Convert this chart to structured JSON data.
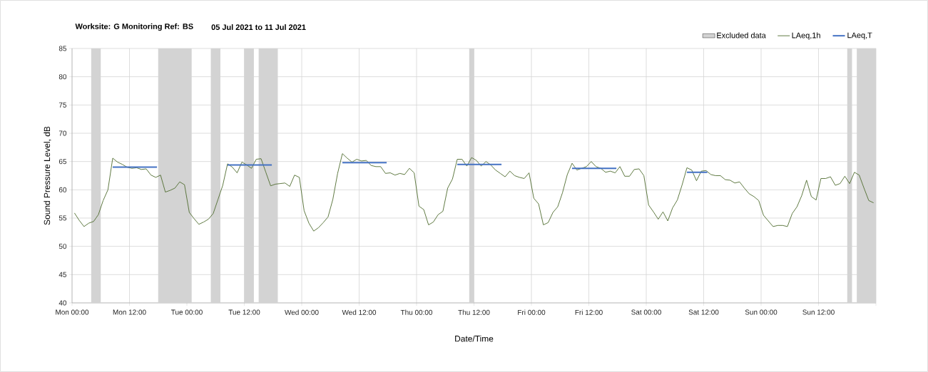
{
  "chart_data": {
    "type": "line",
    "title": "Worksite: G   Monitoring Ref: BS",
    "subtitle": "05 Jul 2021 to 11 Jul 2021",
    "xlabel": "Date/Time",
    "ylabel": "Sound Pressure Level, dB",
    "xlim": [
      "2021-07-05T00:00",
      "2021-07-12T00:00"
    ],
    "ylim": [
      40,
      85
    ],
    "xticks": [
      {
        "value": "2021-07-05T00:00",
        "label": "Mon 00:00"
      },
      {
        "value": "2021-07-05T12:00",
        "label": "Mon 12:00"
      },
      {
        "value": "2021-07-06T00:00",
        "label": "Tue 00:00"
      },
      {
        "value": "2021-07-06T12:00",
        "label": "Tue 12:00"
      },
      {
        "value": "2021-07-07T00:00",
        "label": "Wed 00:00"
      },
      {
        "value": "2021-07-07T12:00",
        "label": "Wed 12:00"
      },
      {
        "value": "2021-07-08T00:00",
        "label": "Thu 00:00"
      },
      {
        "value": "2021-07-08T12:00",
        "label": "Thu 12:00"
      },
      {
        "value": "2021-07-09T00:00",
        "label": "Fri 00:00"
      },
      {
        "value": "2021-07-09T12:00",
        "label": "Fri 12:00"
      },
      {
        "value": "2021-07-10T00:00",
        "label": "Sat 00:00"
      },
      {
        "value": "2021-07-10T12:00",
        "label": "Sat 12:00"
      },
      {
        "value": "2021-07-11T00:00",
        "label": "Sun 00:00"
      },
      {
        "value": "2021-07-11T12:00",
        "label": "Sun 12:00"
      },
      {
        "value": "2021-07-12T00:00",
        "label": null
      }
    ],
    "yticks": [
      40,
      45,
      50,
      55,
      60,
      65,
      70,
      75,
      80,
      85
    ],
    "grid": true,
    "legend": "top right",
    "marker": "none",
    "line_style": "solid",
    "bands": [
      {
        "axis": "x",
        "from": "2021-07-05T04:00",
        "to": "2021-07-05T06:00",
        "label": "Excluded data",
        "color": "#d3d3d3"
      },
      {
        "axis": "x",
        "from": "2021-07-05T18:00",
        "to": "2021-07-06T01:00",
        "color": "#d3d3d3"
      },
      {
        "axis": "x",
        "from": "2021-07-06T05:00",
        "to": "2021-07-06T07:00",
        "color": "#d3d3d3"
      },
      {
        "axis": "x",
        "from": "2021-07-06T12:00",
        "to": "2021-07-06T14:00",
        "color": "#d3d3d3"
      },
      {
        "axis": "x",
        "from": "2021-07-06T15:00",
        "to": "2021-07-06T19:00",
        "color": "#d3d3d3"
      },
      {
        "axis": "x",
        "from": "2021-07-08T11:00",
        "to": "2021-07-08T12:00",
        "color": "#d3d3d3"
      },
      {
        "axis": "x",
        "from": "2021-07-11T18:00",
        "to": "2021-07-11T19:00",
        "color": "#d3d3d3"
      },
      {
        "axis": "x",
        "from": "2021-07-11T20:00",
        "to": "2021-07-12T00:00",
        "color": "#d3d3d3"
      }
    ],
    "series": [
      {
        "name": "LAeq,1h",
        "color": "#4e6b2e",
        "x": [
          "2021-07-05T00:30",
          "2021-07-05T01:30",
          "2021-07-05T02:30",
          "2021-07-05T03:30",
          "2021-07-05T04:30",
          "2021-07-05T05:30",
          "2021-07-05T06:30",
          "2021-07-05T07:30",
          "2021-07-05T08:30",
          "2021-07-05T09:30",
          "2021-07-05T10:30",
          "2021-07-05T11:30",
          "2021-07-05T12:30",
          "2021-07-05T13:30",
          "2021-07-05T14:30",
          "2021-07-05T15:30",
          "2021-07-05T16:30",
          "2021-07-05T17:30",
          "2021-07-05T18:30",
          "2021-07-05T19:30",
          "2021-07-05T20:30",
          "2021-07-05T21:30",
          "2021-07-05T22:30",
          "2021-07-05T23:30",
          "2021-07-06T00:30",
          "2021-07-06T01:30",
          "2021-07-06T02:30",
          "2021-07-06T03:30",
          "2021-07-06T04:30",
          "2021-07-06T05:30",
          "2021-07-06T06:30",
          "2021-07-06T07:30",
          "2021-07-06T08:30",
          "2021-07-06T09:30",
          "2021-07-06T10:30",
          "2021-07-06T11:30",
          "2021-07-06T12:30",
          "2021-07-06T13:30",
          "2021-07-06T14:30",
          "2021-07-06T15:30",
          "2021-07-06T16:30",
          "2021-07-06T17:30",
          "2021-07-06T18:30",
          "2021-07-06T19:30",
          "2021-07-06T20:30",
          "2021-07-06T21:30",
          "2021-07-06T22:30",
          "2021-07-06T23:30",
          "2021-07-07T00:30",
          "2021-07-07T01:30",
          "2021-07-07T02:30",
          "2021-07-07T03:30",
          "2021-07-07T04:30",
          "2021-07-07T05:30",
          "2021-07-07T06:30",
          "2021-07-07T07:30",
          "2021-07-07T08:30",
          "2021-07-07T09:30",
          "2021-07-07T10:30",
          "2021-07-07T11:30",
          "2021-07-07T12:30",
          "2021-07-07T13:30",
          "2021-07-07T14:30",
          "2021-07-07T15:30",
          "2021-07-07T16:30",
          "2021-07-07T17:30",
          "2021-07-07T18:30",
          "2021-07-07T19:30",
          "2021-07-07T20:30",
          "2021-07-07T21:30",
          "2021-07-07T22:30",
          "2021-07-07T23:30",
          "2021-07-08T00:30",
          "2021-07-08T01:30",
          "2021-07-08T02:30",
          "2021-07-08T03:30",
          "2021-07-08T04:30",
          "2021-07-08T05:30",
          "2021-07-08T06:30",
          "2021-07-08T07:30",
          "2021-07-08T08:30",
          "2021-07-08T09:30",
          "2021-07-08T10:30",
          "2021-07-08T11:30",
          "2021-07-08T12:30",
          "2021-07-08T13:30",
          "2021-07-08T14:30",
          "2021-07-08T15:30",
          "2021-07-08T16:30",
          "2021-07-08T17:30",
          "2021-07-08T18:30",
          "2021-07-08T19:30",
          "2021-07-08T20:30",
          "2021-07-08T21:30",
          "2021-07-08T22:30",
          "2021-07-08T23:30",
          "2021-07-09T00:30",
          "2021-07-09T01:30",
          "2021-07-09T02:30",
          "2021-07-09T03:30",
          "2021-07-09T04:30",
          "2021-07-09T05:30",
          "2021-07-09T06:30",
          "2021-07-09T07:30",
          "2021-07-09T08:30",
          "2021-07-09T09:30",
          "2021-07-09T10:30",
          "2021-07-09T11:30",
          "2021-07-09T12:30",
          "2021-07-09T13:30",
          "2021-07-09T14:30",
          "2021-07-09T15:30",
          "2021-07-09T16:30",
          "2021-07-09T17:30",
          "2021-07-09T18:30",
          "2021-07-09T19:30",
          "2021-07-09T20:30",
          "2021-07-09T21:30",
          "2021-07-09T22:30",
          "2021-07-09T23:30",
          "2021-07-10T00:30",
          "2021-07-10T01:30",
          "2021-07-10T02:30",
          "2021-07-10T03:30",
          "2021-07-10T04:30",
          "2021-07-10T05:30",
          "2021-07-10T06:30",
          "2021-07-10T07:30",
          "2021-07-10T08:30",
          "2021-07-10T09:30",
          "2021-07-10T10:30",
          "2021-07-10T11:30",
          "2021-07-10T12:30",
          "2021-07-10T13:30",
          "2021-07-10T14:30",
          "2021-07-10T15:30",
          "2021-07-10T16:30",
          "2021-07-10T17:30",
          "2021-07-10T18:30",
          "2021-07-10T19:30",
          "2021-07-10T20:30",
          "2021-07-10T21:30",
          "2021-07-10T22:30",
          "2021-07-10T23:30",
          "2021-07-11T00:30",
          "2021-07-11T01:30",
          "2021-07-11T02:30",
          "2021-07-11T03:30",
          "2021-07-11T04:30",
          "2021-07-11T05:30",
          "2021-07-11T06:30",
          "2021-07-11T07:30",
          "2021-07-11T08:30",
          "2021-07-11T09:30",
          "2021-07-11T10:30",
          "2021-07-11T11:30",
          "2021-07-11T12:30",
          "2021-07-11T13:30",
          "2021-07-11T14:30",
          "2021-07-11T15:30",
          "2021-07-11T16:30",
          "2021-07-11T17:30",
          "2021-07-11T18:30",
          "2021-07-11T19:30",
          "2021-07-11T20:30",
          "2021-07-11T21:30",
          "2021-07-11T22:30",
          "2021-07-11T23:30"
        ],
        "values": [
          55.9,
          54.6,
          53.5,
          54.1,
          54.4,
          55.6,
          58.1,
          60.0,
          65.6,
          64.9,
          64.5,
          64.0,
          63.8,
          63.9,
          63.6,
          63.7,
          62.6,
          62.2,
          62.6,
          59.6,
          59.9,
          60.3,
          61.4,
          60.9,
          56.0,
          54.9,
          53.9,
          54.3,
          54.8,
          55.8,
          58.3,
          60.8,
          64.6,
          64.0,
          63.0,
          64.9,
          64.4,
          63.8,
          65.4,
          65.5,
          63.1,
          60.7,
          61.0,
          61.1,
          61.2,
          60.6,
          62.6,
          62.2,
          56.3,
          54.1,
          52.7,
          53.3,
          54.2,
          55.2,
          58.3,
          62.9,
          66.4,
          65.6,
          64.9,
          65.4,
          65.1,
          65.2,
          64.3,
          64.1,
          64.1,
          62.9,
          63.0,
          62.6,
          62.9,
          62.7,
          63.8,
          63.0,
          57.1,
          56.5,
          53.8,
          54.3,
          55.6,
          56.2,
          60.3,
          61.9,
          65.4,
          65.4,
          64.2,
          65.7,
          65.2,
          64.2,
          65.0,
          64.4,
          63.5,
          62.9,
          62.3,
          63.3,
          62.5,
          62.2,
          62.0,
          63.0,
          58.5,
          57.5,
          53.8,
          54.2,
          56.0,
          57.0,
          59.5,
          62.7,
          64.7,
          63.5,
          63.8,
          64.1,
          65.0,
          64.1,
          63.8,
          63.1,
          63.3,
          63.0,
          64.1,
          62.4,
          62.4,
          63.6,
          63.7,
          62.5,
          57.3,
          56.1,
          54.8,
          56.1,
          54.5,
          56.8,
          58.2,
          60.9,
          63.9,
          63.5,
          61.6,
          63.3,
          63.4,
          62.7,
          62.5,
          62.5,
          61.8,
          61.7,
          61.2,
          61.4,
          60.3,
          59.3,
          58.8,
          58.1,
          55.5,
          54.5,
          53.5,
          53.7,
          53.7,
          53.5,
          55.8,
          57.0,
          59.0,
          61.7,
          58.8,
          58.2,
          62.0,
          62.0,
          62.3,
          60.8,
          61.1,
          62.4,
          61.1,
          63.1,
          62.6,
          60.3,
          58.1,
          57.7
        ]
      },
      {
        "name": "LAeq,T",
        "color": "#4472c4",
        "x": [
          "2021-07-05T08:30",
          "2021-07-05T17:45",
          null,
          "2021-07-06T08:30",
          "2021-07-06T17:45",
          null,
          "2021-07-07T08:30",
          "2021-07-07T17:45",
          null,
          "2021-07-08T08:30",
          "2021-07-08T17:45",
          null,
          "2021-07-09T08:30",
          "2021-07-09T17:45",
          null,
          "2021-07-10T08:30",
          "2021-07-10T12:45"
        ],
        "values": [
          64.0,
          64.0,
          null,
          64.4,
          64.4,
          null,
          64.8,
          64.8,
          null,
          64.5,
          64.5,
          null,
          63.8,
          63.8,
          null,
          63.1,
          63.1
        ]
      }
    ]
  }
}
